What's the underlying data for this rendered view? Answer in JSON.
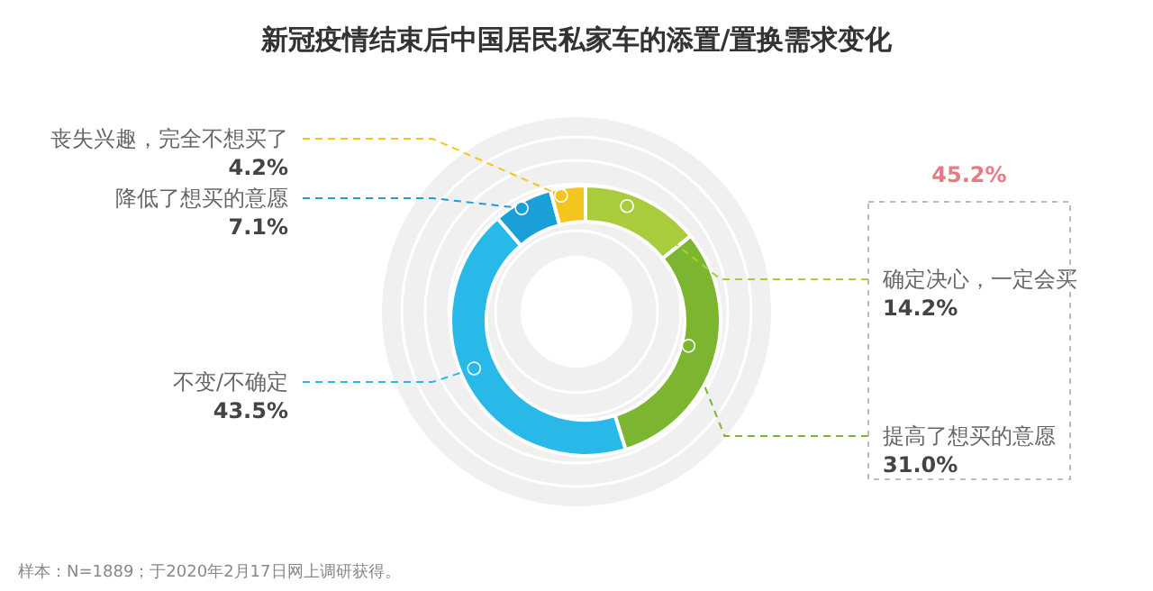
{
  "chart_data": {
    "type": "donut",
    "title": "新冠疫情结束后中国居民私家车的添置/置换需求变化",
    "categories": [
      "确定决心，一定会买",
      "提高了想买的意愿",
      "不变/不确定",
      "降低了想买的意愿",
      "丧失兴趣，完全不想买了"
    ],
    "values": [
      14.2,
      31.0,
      43.5,
      7.1,
      4.2
    ],
    "colors": [
      "#a8cc3c",
      "#7cb630",
      "#29b9e9",
      "#1a9fd6",
      "#f4c51c"
    ],
    "value_labels": [
      "14.2%",
      "31.0%",
      "43.5%",
      "7.1%",
      "4.2%"
    ],
    "annotations": [
      "45.2%",
      "样本：N=1889；于2020年2月17日网上调研获得。"
    ]
  }
}
